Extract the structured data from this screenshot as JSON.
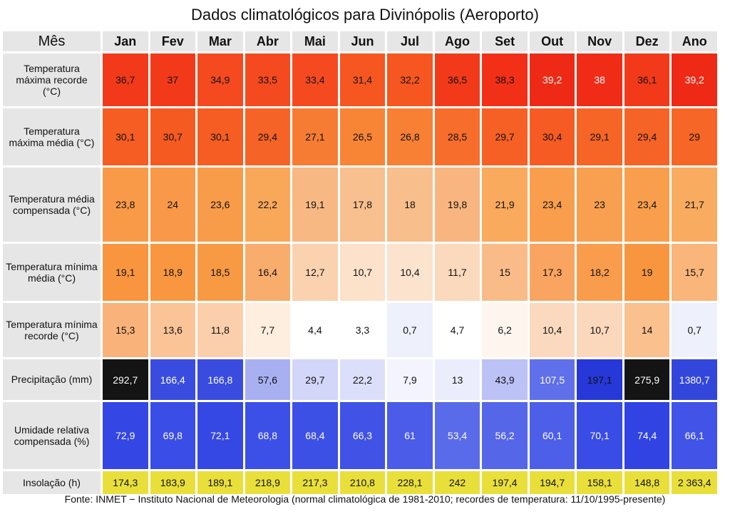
{
  "title": "Dados climatológicos para Divinópolis (Aeroporto)",
  "header": {
    "corner": "Mês",
    "months": [
      "Jan",
      "Fev",
      "Mar",
      "Abr",
      "Mai",
      "Jun",
      "Jul",
      "Ago",
      "Set",
      "Out",
      "Nov",
      "Dez",
      "Ano"
    ]
  },
  "rows": [
    {
      "label": "Temperatura máxima recorde (°C)",
      "values": [
        "36,7",
        "37",
        "34,9",
        "33,5",
        "33,4",
        "31,4",
        "32,2",
        "36,5",
        "38,3",
        "39,2",
        "38",
        "36,1",
        "39,2"
      ],
      "colors": [
        "#f23a1a",
        "#f23a1a",
        "#f54a1f",
        "#f54a1f",
        "#f54a1f",
        "#f6561f",
        "#f6561f",
        "#f23a1a",
        "#f23018",
        "#ee2a16",
        "#f02c17",
        "#f23a1a",
        "#ee2a16"
      ],
      "text_colors": [
        "#111111",
        "#111111",
        "#111111",
        "#111111",
        "#111111",
        "#111111",
        "#111111",
        "#111111",
        "#111111",
        "#ffffff",
        "#ffffff",
        "#111111",
        "#ffffff"
      ]
    },
    {
      "label": "Temperatura máxima média (°C)",
      "values": [
        "30,1",
        "30,7",
        "30,1",
        "29,4",
        "27,1",
        "26,5",
        "26,8",
        "28,5",
        "29,7",
        "30,4",
        "29,1",
        "29,4",
        "29"
      ],
      "colors": [
        "#f55d22",
        "#f55a21",
        "#f55d22",
        "#f66326",
        "#f77c33",
        "#f88436",
        "#f88035",
        "#f76d2b",
        "#f66024",
        "#f55b22",
        "#f66526",
        "#f66326",
        "#f66627"
      ],
      "text_colors": [
        "#111111",
        "#111111",
        "#111111",
        "#111111",
        "#111111",
        "#111111",
        "#111111",
        "#111111",
        "#111111",
        "#111111",
        "#111111",
        "#111111",
        "#111111"
      ]
    },
    {
      "label": "Temperatura média compensada (°C)",
      "values": [
        "23,8",
        "24",
        "23,6",
        "22,2",
        "19,1",
        "17,8",
        "18",
        "19,8",
        "21,9",
        "23,4",
        "23",
        "23,4",
        "21,7"
      ],
      "colors": [
        "#f99a48",
        "#f99848",
        "#f99c4a",
        "#f9a85a",
        "#f8b884",
        "#f8c08e",
        "#f8be8c",
        "#f8b57f",
        "#f9aa5d",
        "#f99e4c",
        "#f9a050",
        "#f99e4c",
        "#f9ab60"
      ],
      "text_colors": [
        "#111111",
        "#111111",
        "#111111",
        "#111111",
        "#111111",
        "#111111",
        "#111111",
        "#111111",
        "#111111",
        "#111111",
        "#111111",
        "#111111",
        "#111111"
      ]
    },
    {
      "label": "Temperatura mínima média (°C)",
      "values": [
        "19,1",
        "18,9",
        "18,5",
        "16,4",
        "12,7",
        "10,7",
        "10,4",
        "11,7",
        "15",
        "17,3",
        "18,2",
        "19",
        "15,7"
      ],
      "colors": [
        "#f8953e",
        "#f89740",
        "#f89a44",
        "#f9ad6c",
        "#fad2b0",
        "#fce1cb",
        "#fce3ce",
        "#fbd9bc",
        "#f9bc88",
        "#f9a460",
        "#f99c4c",
        "#f8963f",
        "#f9b57a"
      ],
      "text_colors": [
        "#111111",
        "#111111",
        "#111111",
        "#111111",
        "#111111",
        "#111111",
        "#111111",
        "#111111",
        "#111111",
        "#111111",
        "#111111",
        "#111111",
        "#111111"
      ]
    },
    {
      "label": "Temperatura mínima recorde (°C)",
      "values": [
        "15,3",
        "13,6",
        "11,8",
        "7,7",
        "4,4",
        "3,3",
        "0,7",
        "4,7",
        "6,2",
        "10,4",
        "10,7",
        "14",
        "0,7"
      ],
      "colors": [
        "#f9b27a",
        "#fac496",
        "#fbcfab",
        "#fdeee0",
        "#ffffff",
        "#ffffff",
        "#eef0fc",
        "#ffffff",
        "#fdf5ee",
        "#fbd9bf",
        "#fbd7bc",
        "#fac08e",
        "#eef0fc"
      ],
      "text_colors": [
        "#111111",
        "#111111",
        "#111111",
        "#111111",
        "#111111",
        "#111111",
        "#111111",
        "#111111",
        "#111111",
        "#111111",
        "#111111",
        "#111111",
        "#111111"
      ]
    },
    {
      "label": "Precipitação (mm)",
      "values": [
        "292,7",
        "166,4",
        "166,8",
        "57,6",
        "29,7",
        "22,2",
        "7,9",
        "13",
        "43,9",
        "107,5",
        "197,1",
        "275,9",
        "1380,7"
      ],
      "colors": [
        "#141414",
        "#3a4ce0",
        "#3a4ce0",
        "#a9b0f2",
        "#d2d6f8",
        "#dcdff9",
        "#f3f4fd",
        "#ebedfc",
        "#bcc2f5",
        "#6070ea",
        "#2638d8",
        "#141414",
        "#3346dc"
      ],
      "text_colors": [
        "#ffffff",
        "#ffffff",
        "#ffffff",
        "#111111",
        "#111111",
        "#111111",
        "#111111",
        "#111111",
        "#111111",
        "#ffffff",
        "#111111",
        "#ffffff",
        "#ffffff"
      ]
    },
    {
      "label": "Umidade relativa compensada (%)",
      "values": [
        "72,9",
        "69,8",
        "72,1",
        "68,8",
        "68,4",
        "66,3",
        "61",
        "53,4",
        "56,2",
        "60,1",
        "70,1",
        "74,4",
        "66,1"
      ],
      "colors": [
        "#3447e4",
        "#3a4de6",
        "#3548e4",
        "#3c4fe6",
        "#3d50e6",
        "#4053e6",
        "#4a5ce8",
        "#5a6bea",
        "#5566e9",
        "#4d5fe8",
        "#394ce6",
        "#3144e3",
        "#4154e7"
      ],
      "text_colors": [
        "#ffffff",
        "#ffffff",
        "#ffffff",
        "#ffffff",
        "#ffffff",
        "#ffffff",
        "#ffffff",
        "#ffffff",
        "#ffffff",
        "#ffffff",
        "#ffffff",
        "#ffffff",
        "#ffffff"
      ]
    },
    {
      "label": "Insolação (h)",
      "values": [
        "174,3",
        "183,9",
        "189,1",
        "218,9",
        "217,3",
        "210,8",
        "228,1",
        "242",
        "197,4",
        "194,7",
        "158,1",
        "148,8",
        "2 363,4"
      ],
      "colors": [
        "#e9df3a",
        "#e9df3a",
        "#e9df3a",
        "#e9df3a",
        "#e9df3a",
        "#e9df3a",
        "#e9df3a",
        "#e9df3a",
        "#e9df3a",
        "#e9df3a",
        "#e9df3a",
        "#e9df3a",
        "#e9df3a"
      ],
      "text_colors": [
        "#111111",
        "#111111",
        "#111111",
        "#111111",
        "#111111",
        "#111111",
        "#111111",
        "#111111",
        "#111111",
        "#111111",
        "#111111",
        "#111111",
        "#111111"
      ]
    }
  ],
  "source": "Fonte: INMET − Instituto Nacional de Meteorologia (normal climatológica de 1981-2010; recordes de temperatura: 11/10/1995-presente)"
}
